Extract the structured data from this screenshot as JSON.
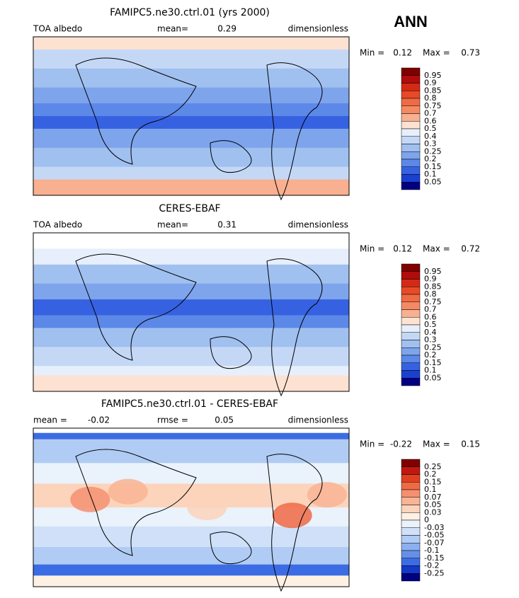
{
  "season": "ANN",
  "panels": [
    {
      "title": "FAMIPC5.ne30.ctrl.01 (yrs 2000)",
      "left_label": "TOA albedo",
      "stat1_label": "mean=",
      "stat1_value": 0.29,
      "units": "dimensionless",
      "min_label": "Min =",
      "min": 0.12,
      "max_label": "Max =",
      "max": 0.73,
      "colorbar": {
        "levels": [
          0.95,
          0.9,
          0.85,
          0.8,
          0.75,
          0.7,
          0.6,
          0.5,
          0.4,
          0.3,
          0.25,
          0.2,
          0.15,
          0.1,
          0.05
        ],
        "colors": [
          "#800000",
          "#b00c0c",
          "#d42a14",
          "#e84a28",
          "#f06a44",
          "#f48a64",
          "#f8b090",
          "#fde2d2",
          "#e6effb",
          "#c4d8f6",
          "#a0c0f0",
          "#7ea4ec",
          "#5c88e8",
          "#3662e2",
          "#1a40d0",
          "#000080"
        ]
      }
    },
    {
      "title": "CERES-EBAF",
      "left_label": "TOA albedo",
      "stat1_label": "mean=",
      "stat1_value": 0.31,
      "units": "dimensionless",
      "min_label": "Min =",
      "min": 0.12,
      "max_label": "Max =",
      "max": 0.72,
      "colorbar": {
        "levels": [
          0.95,
          0.9,
          0.85,
          0.8,
          0.75,
          0.7,
          0.6,
          0.5,
          0.4,
          0.3,
          0.25,
          0.2,
          0.15,
          0.1,
          0.05
        ],
        "colors": [
          "#800000",
          "#b00c0c",
          "#d42a14",
          "#e84a28",
          "#f06a44",
          "#f48a64",
          "#f8b090",
          "#fde2d2",
          "#e6effb",
          "#c4d8f6",
          "#a0c0f0",
          "#7ea4ec",
          "#5c88e8",
          "#3662e2",
          "#1a40d0",
          "#000080"
        ]
      }
    },
    {
      "title": "FAMIPC5.ne30.ctrl.01 - CERES-EBAF",
      "stat1_label": "mean =",
      "stat1_value": -0.02,
      "stat2_label": "rmse =",
      "stat2_value": 0.05,
      "units": "dimensionless",
      "min_label": "Min =",
      "min": -0.22,
      "max_label": "Max =",
      "max": 0.15,
      "colorbar": {
        "levels": [
          0.25,
          0.2,
          0.15,
          0.1,
          0.07,
          0.05,
          0.03,
          0,
          -0.03,
          -0.05,
          -0.07,
          -0.1,
          -0.15,
          -0.2,
          -0.25
        ],
        "colors": [
          "#800000",
          "#c01810",
          "#e04020",
          "#f06a44",
          "#f49070",
          "#f8b494",
          "#fcd4bc",
          "#fff0e4",
          "#eaf2fc",
          "#cfe0f8",
          "#b0ccf4",
          "#8cb0ee",
          "#6690e8",
          "#3c6ce4",
          "#1438c8",
          "#000080"
        ]
      }
    }
  ]
}
